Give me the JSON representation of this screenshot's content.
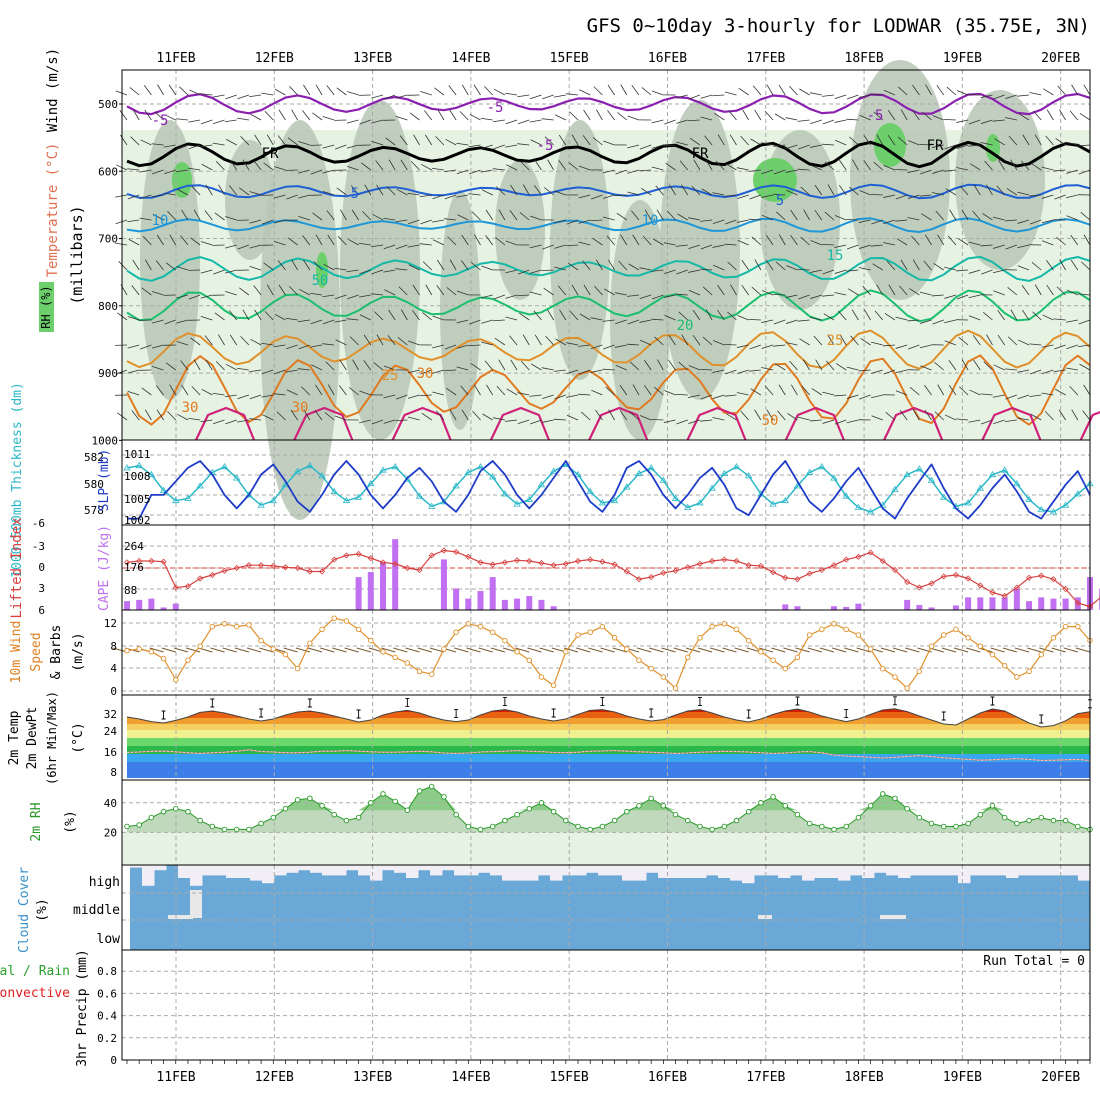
{
  "title": "GFS 0~10day 3-hourly for LODWAR (35.75E, 3N)",
  "dates": [
    "11FEB",
    "12FEB",
    "13FEB",
    "14FEB",
    "15FEB",
    "16FEB",
    "17FEB",
    "18FEB",
    "19FEB",
    "20FEB"
  ],
  "colors": {
    "grid": "#aaaaaa",
    "rh_light": "#e6f3e3",
    "rh_mid": "#b7c7b5",
    "rh_high": "#6ccf6c",
    "temp_purple": "#8a1fb0",
    "temp_blue": "#1f5fd4",
    "temp_lightblue": "#1e96d8",
    "temp_teal": "#16b8a8",
    "temp_green": "#1bbf6f",
    "temp_orange": "#e0902a",
    "temp_darkorange": "#e07a20",
    "temp_magenta": "#d0207a",
    "slp": "#1e3cc8",
    "thickness": "#2ab8c8",
    "lifted": "#d84040",
    "cape": "#c070f0",
    "wind": "#e0902a",
    "barb": "#7a5a30",
    "rh2m": "#2a9a2a",
    "cloud": "#6aa8d8",
    "precip_total": "#2aa02a",
    "precip_conv": "#e02020"
  },
  "panels": {
    "upper": {
      "labels": [
        "Wind (m/s)",
        "Temperature (°C)",
        "RH (%)",
        "(millibars)"
      ],
      "ticks": [
        "500",
        "600",
        "700",
        "800",
        "900",
        "1000"
      ],
      "contour_labels": [
        "-5",
        "-5",
        "-5",
        "FR",
        "FR",
        "FR",
        "-5",
        "5",
        "5",
        "10",
        "10",
        "15",
        "20",
        "25",
        "25",
        "30",
        "30",
        "50",
        "50",
        "30"
      ]
    },
    "pressure": {
      "left_label": "1000-500mb Thickness (dm)",
      "right_label": "SLP (mb)",
      "thickness_ticks": [
        "582",
        "580",
        "578"
      ],
      "slp_ticks": [
        "1011",
        "1008",
        "1005",
        "1002"
      ],
      "slp": [
        1002.5,
        1002.5,
        1006,
        1006,
        1008,
        1010,
        1011,
        1009,
        1006,
        1004,
        1006,
        1009,
        1010.5,
        1008,
        1005,
        1003.5,
        1006,
        1009,
        1011,
        1009,
        1006,
        1004,
        1006,
        1008.5,
        1010,
        1008,
        1005,
        1003.5,
        1006,
        1009.5,
        1011,
        1009,
        1006,
        1004,
        1006,
        1008.5,
        1011,
        1008,
        1005,
        1003.5,
        1006,
        1010,
        1011,
        1009,
        1006,
        1004,
        1006,
        1008.5,
        1010,
        1007.5,
        1004,
        1003,
        1006,
        1009,
        1011,
        1008,
        1005,
        1003.5,
        1005.5,
        1008,
        1010,
        1007,
        1004,
        1002.5,
        1005.5,
        1008,
        1010.5,
        1007,
        1004,
        1002.5,
        1004.5,
        1007,
        1009,
        1006.5,
        1003.5,
        1002.5,
        1005,
        1007.5,
        1009.5,
        1006
      ],
      "thickness": [
        581.9,
        582.1,
        581.3,
        579.9,
        579.0,
        579.2,
        580.3,
        581.5,
        582.0,
        581.0,
        579.5,
        578.6,
        579.0,
        580.4,
        581.6,
        582.1,
        581.2,
        579.8,
        579.0,
        579.3,
        580.5,
        581.7,
        582.0,
        580.9,
        579.4,
        578.5,
        578.9,
        580.3,
        581.5,
        582.0,
        581.1,
        579.6,
        578.7,
        579.1,
        580.4,
        581.6,
        582.2,
        581.3,
        579.8,
        578.8,
        579.0,
        580.2,
        581.4,
        581.9,
        580.8,
        579.2,
        578.4,
        578.8,
        580.1,
        581.4,
        582.0,
        581.2,
        579.6,
        578.7,
        579.0,
        580.3,
        581.5,
        582.0,
        581.0,
        579.4,
        578.4,
        578.0,
        578.6,
        580.0,
        581.3,
        581.8,
        580.8,
        579.3,
        578.5,
        578.8,
        580.1,
        581.3,
        581.7,
        580.5,
        579.1,
        578.2,
        578.0,
        578.6,
        579.6,
        580.5
      ]
    },
    "lifted": {
      "left_label": "Lifted Index",
      "right_label": "CAPE (J/kg)",
      "li_ticks": [
        "-6",
        "-3",
        "0",
        "3",
        "6"
      ],
      "cape_ticks": [
        "264",
        "176",
        "88"
      ],
      "lifted_index": [
        -0.8,
        -1.0,
        -1.0,
        -0.9,
        2.8,
        2.6,
        1.5,
        1.0,
        0.4,
        0,
        -0.4,
        -0.4,
        -0.3,
        -0.1,
        0,
        0.5,
        0.5,
        -1.2,
        -1.8,
        -2.0,
        -1.4,
        -0.8,
        -0.6,
        0,
        0.3,
        -1.8,
        -2.5,
        -2.3,
        -1.6,
        -0.8,
        -0.5,
        -0.8,
        -1.1,
        -1.0,
        -0.7,
        -0.4,
        -0.6,
        -1.0,
        -1.2,
        -0.9,
        -0.5,
        0.5,
        1.6,
        1.3,
        0.7,
        0.4,
        -0.1,
        -0.6,
        -1.0,
        -1.2,
        -1.0,
        -0.4,
        -0.3,
        0.6,
        1.4,
        1.6,
        0.8,
        0.3,
        -0.4,
        -1.2,
        -1.6,
        -2.2,
        -1.0,
        0.3,
        2.0,
        2.8,
        2.2,
        1.2,
        1.0,
        1.5,
        2.5,
        3.5,
        4.0,
        2.8,
        1.4,
        1.1,
        1.6,
        3.0,
        5.0,
        5.5,
        4.0,
        2.5
      ],
      "cape": [
        35,
        40,
        45,
        10,
        25,
        0,
        0,
        0,
        0,
        0,
        0,
        0,
        0,
        0,
        0,
        0,
        0,
        0,
        0,
        130,
        150,
        190,
        280,
        0,
        0,
        0,
        200,
        85,
        45,
        75,
        130,
        40,
        45,
        55,
        40,
        15,
        0,
        0,
        0,
        0,
        0,
        0,
        0,
        0,
        0,
        0,
        0,
        0,
        0,
        0,
        0,
        0,
        0,
        0,
        22,
        15,
        0,
        0,
        15,
        12,
        25,
        0,
        0,
        0,
        40,
        20,
        10,
        0,
        18,
        50,
        50,
        50,
        50,
        85,
        35,
        50,
        45,
        45,
        50,
        130,
        85,
        50,
        40,
        10
      ]
    },
    "wind": {
      "left_label": "10m Wind Speed & Barbs (m/s)",
      "ticks": [
        "12",
        "8",
        "4",
        "0"
      ],
      "speed": [
        7.2,
        7.5,
        7.0,
        5.8,
        2.0,
        5.5,
        8.0,
        11.5,
        12.0,
        11.5,
        11.8,
        9.0,
        7.5,
        6.5,
        4.0,
        8.5,
        11.0,
        13.0,
        12.5,
        11.0,
        9.0,
        7.0,
        6.0,
        5.0,
        3.5,
        3.0,
        7.5,
        10.5,
        12.0,
        11.5,
        10.5,
        9.0,
        7.0,
        5.5,
        2.5,
        1.0,
        7.0,
        10.0,
        10.5,
        11.5,
        9.5,
        7.5,
        5.5,
        4.0,
        2.5,
        0.5,
        6.0,
        9.5,
        11.5,
        12.0,
        11.0,
        9.0,
        7.0,
        5.5,
        4.0,
        6.0,
        10.0,
        11.0,
        12.0,
        11.0,
        10.0,
        7.5,
        4.0,
        2.5,
        0.5,
        3.5,
        8.0,
        10.0,
        11.0,
        9.5,
        8.0,
        6.5,
        4.5,
        2.5,
        3.5,
        6.5,
        9.5,
        11.5,
        11.5,
        9.0
      ]
    },
    "temp": {
      "left_label": "2m Temp 2m DewPt (6hr Min/Max) (°C)",
      "ticks": [
        "32",
        "24",
        "16",
        "8"
      ],
      "temperature": [
        30.5,
        29.5,
        28.2,
        27.5,
        28.8,
        30.5,
        32.8,
        33.5,
        32.5,
        31.0,
        29.5,
        28.5,
        29.5,
        31.5,
        33.0,
        33.5,
        32.5,
        31.0,
        29.5,
        28.0,
        29.0,
        31.5,
        33.0,
        33.8,
        32.5,
        30.5,
        29.0,
        28.2,
        29.0,
        31.5,
        33.5,
        34.2,
        33.0,
        31.0,
        29.5,
        28.5,
        29.5,
        31.8,
        33.8,
        34.2,
        33.0,
        31.0,
        29.5,
        28.5,
        29.2,
        31.5,
        33.5,
        34.2,
        32.5,
        30.5,
        29.0,
        28.0,
        29.5,
        31.8,
        33.5,
        34.5,
        33.0,
        31.0,
        29.5,
        28.2,
        29.5,
        31.8,
        34.0,
        34.6,
        33.2,
        31.0,
        29.0,
        27.0,
        26.5,
        29.5,
        32.5,
        34.5,
        33.5,
        30.5,
        27.5,
        25.5,
        26.2,
        28.6,
        32.2,
        33.1
      ],
      "dewpoint": [
        12.8,
        13.0,
        13.4,
        13.4,
        13.1,
        12.6,
        12.3,
        12.6,
        12.9,
        13.4,
        14.1,
        13.2,
        13.0,
        12.6,
        12.6,
        12.9,
        13.4,
        13.4,
        13.7,
        13.4,
        13.1,
        12.9,
        12.9,
        13.1,
        13.4,
        13.1,
        12.5,
        12.3,
        12.5,
        13.0,
        13.2,
        13.4,
        13.7,
        13.4,
        13.2,
        12.8,
        12.6,
        12.9,
        13.4,
        13.5,
        13.7,
        13.4,
        13.1,
        12.9,
        12.6,
        12.3,
        12.5,
        12.9,
        13.1,
        13.4,
        13.2,
        13.0,
        12.6,
        12.3,
        12.5,
        13.0,
        13.2,
        12.6,
        11.5,
        11.0,
        10.7,
        10.3,
        10.0,
        10.3,
        10.8,
        11.2,
        10.7,
        10.1,
        9.7,
        9.3,
        8.9,
        9.1,
        9.4,
        9.7,
        9.3,
        8.8,
        8.9,
        9.1,
        9.3,
        8.7
      ]
    },
    "rh": {
      "left_label": "2m RH (%)",
      "ticks": [
        "40",
        "20"
      ],
      "rh2m": [
        24,
        25,
        30,
        34,
        36,
        34,
        28,
        24,
        22,
        22,
        22,
        26,
        30,
        36,
        42,
        43,
        38,
        32,
        28,
        30,
        40,
        46,
        41,
        35,
        48,
        51,
        44,
        32,
        24,
        22,
        24,
        28,
        32,
        36,
        40,
        34,
        28,
        24,
        22,
        24,
        28,
        34,
        38,
        43,
        38,
        32,
        28,
        24,
        22,
        24,
        28,
        34,
        40,
        44,
        38,
        32,
        26,
        24,
        22,
        24,
        30,
        38,
        46,
        43,
        36,
        30,
        26,
        24,
        24,
        26,
        32,
        38,
        30,
        26,
        28,
        30,
        28,
        28,
        24,
        22
      ]
    },
    "cloud": {
      "left_label": "Cloud Cover (%)",
      "levels": [
        "high",
        "middle",
        "low"
      ],
      "high": [
        90,
        20,
        80,
        100,
        50,
        20,
        60,
        60,
        50,
        50,
        40,
        30,
        60,
        70,
        80,
        70,
        60,
        60,
        80,
        60,
        40,
        80,
        70,
        50,
        80,
        60,
        80,
        60,
        60,
        70,
        60,
        40,
        40,
        40,
        60,
        40,
        60,
        60,
        70,
        60,
        60,
        40,
        40,
        70,
        50,
        50,
        50,
        50,
        60,
        50,
        40,
        30,
        60,
        60,
        50,
        60,
        40,
        50,
        50,
        40,
        60,
        50,
        70,
        60,
        50,
        60,
        60,
        60,
        60,
        30,
        60,
        60,
        60,
        50,
        60,
        60,
        60,
        60,
        60,
        40
      ],
      "middle": [
        0,
        0,
        0,
        0,
        0,
        80,
        0,
        0,
        0,
        0,
        0,
        0,
        0,
        0,
        0,
        0,
        0,
        0,
        0,
        0,
        0,
        0,
        0,
        0,
        0,
        0,
        0,
        0,
        0,
        0,
        0,
        0,
        0,
        0,
        0,
        0,
        0,
        0,
        0,
        0,
        0,
        0,
        0,
        0,
        0,
        0,
        0,
        0,
        0,
        0,
        0,
        0,
        0,
        0,
        0,
        0,
        0,
        0,
        0,
        0,
        0,
        0,
        0,
        0,
        0,
        0,
        0,
        0,
        0,
        0,
        0,
        0,
        0,
        0,
        0,
        0,
        0,
        0,
        0,
        0
      ],
      "low": [
        0,
        0,
        0,
        0,
        0,
        0,
        0,
        0,
        0,
        0,
        0,
        0,
        0,
        0,
        0,
        0,
        0,
        0,
        0,
        0,
        0,
        0,
        0,
        0,
        0,
        0,
        0,
        0,
        0,
        0,
        0,
        0,
        0,
        0,
        0,
        0,
        0,
        0,
        0,
        0,
        0,
        0,
        0,
        0,
        0,
        0,
        0,
        0,
        0,
        0,
        0,
        0,
        0,
        0,
        0,
        0,
        0,
        0,
        0,
        0,
        0,
        0,
        0,
        0,
        0,
        0,
        0,
        0,
        0,
        0,
        0,
        0,
        0,
        0,
        0,
        0,
        0,
        0,
        0,
        0
      ]
    },
    "precip": {
      "left_label_total": "Total / Rain",
      "left_label_conv": "Convective",
      "axis_label": "3hr Precip (mm)",
      "ticks": [
        "0.8",
        "0.6",
        "0.4",
        "0.2",
        "0"
      ],
      "run_total": "Run Total = 0",
      "values": []
    }
  },
  "chart_data": [
    {
      "type": "heatmap",
      "title": "GFS 0~10day 3-hourly for LODWAR (35.75E, 3N)",
      "ylabel": "millibars",
      "ylim": [
        1000,
        450
      ],
      "xlabel": "",
      "note": "RH shading with temperature contours and wind barbs"
    },
    {
      "type": "line",
      "ylabel": "1000-500mb Thickness (dm) / SLP (mb)"
    },
    {
      "type": "bar",
      "ylabel": "Lifted Index / CAPE (J/kg)"
    },
    {
      "type": "line",
      "ylabel": "10m Wind Speed & Barbs (m/s)",
      "ylim": [
        0,
        14
      ]
    },
    {
      "type": "area",
      "ylabel": "2m Temp 2m DewPt (°C)",
      "ylim": [
        0,
        40
      ]
    },
    {
      "type": "area",
      "ylabel": "2m RH (%)",
      "ylim": [
        0,
        55
      ]
    },
    {
      "type": "bar",
      "ylabel": "Cloud Cover (%)"
    },
    {
      "type": "bar",
      "ylabel": "3hr Precip (mm)",
      "ylim": [
        0,
        1
      ]
    }
  ]
}
